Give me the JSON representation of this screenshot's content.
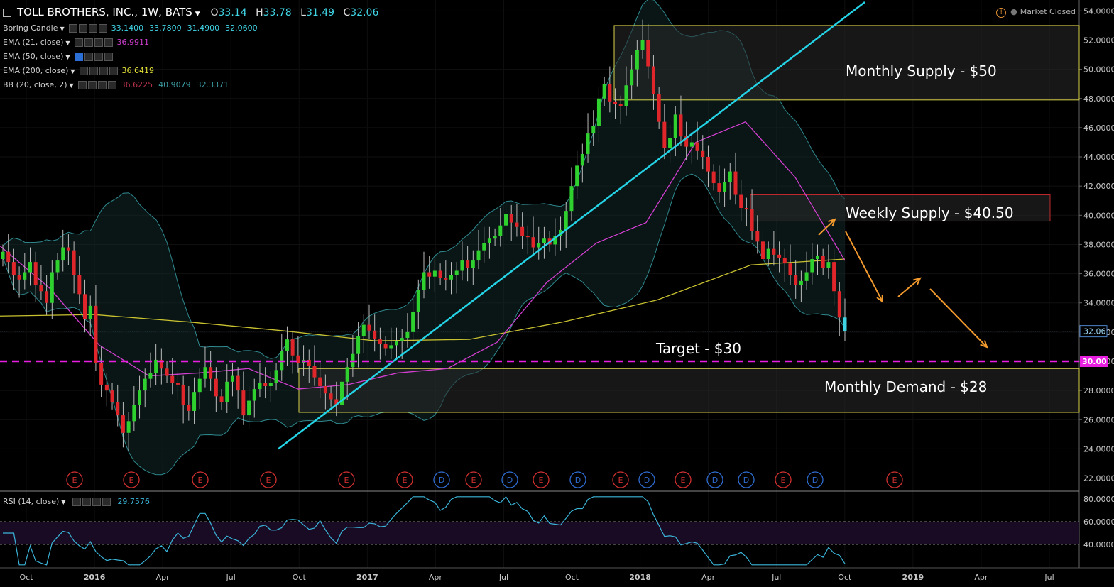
{
  "header": {
    "symbol": "TOLL BROTHERS, INC., 1W, BATS",
    "o_label": "O",
    "o_value": "33.14",
    "h_label": "H",
    "h_value": "33.78",
    "l_label": "L",
    "l_value": "31.49",
    "c_label": "C",
    "c_value": "32.06",
    "market_status": "Market Closed"
  },
  "legends": [
    {
      "name": "Boring Candle",
      "values": [
        {
          "t": "33.1400",
          "c": "#3fd4e4"
        },
        {
          "t": "33.7800",
          "c": "#3fd4e4"
        },
        {
          "t": "31.4900",
          "c": "#3fd4e4"
        },
        {
          "t": "32.0600",
          "c": "#3fd4e4"
        }
      ]
    },
    {
      "name": "EMA (21, close)",
      "values": [
        {
          "t": "36.9911",
          "c": "#d13fd0"
        }
      ]
    },
    {
      "name": "EMA (50, close)",
      "values": []
    },
    {
      "name": "EMA (200, close)",
      "values": [
        {
          "t": "36.6419",
          "c": "#e3e036"
        }
      ]
    },
    {
      "name": "BB (20, close, 2)",
      "values": [
        {
          "t": "36.6225",
          "c": "#b8324a"
        },
        {
          "t": "40.9079",
          "c": "#3a9aa0"
        },
        {
          "t": "32.3371",
          "c": "#3a9aa0"
        }
      ]
    }
  ],
  "rsi_legend": {
    "name": "RSI (14, close)",
    "value": "29.7576"
  },
  "annotations": {
    "monthly_supply": "Monthly Supply - $50",
    "weekly_supply": "Weekly Supply - $40.50",
    "target": "Target - $30",
    "monthly_demand": "Monthly Demand - $28"
  },
  "price_tags": {
    "last": "32.06",
    "target": "30.00"
  },
  "colors": {
    "up": "#2fd12f",
    "down": "#e0262a",
    "last": "#3fd4e4",
    "ema21": "#d13fd0",
    "ema200": "#c9c230",
    "bb": "#2f8a90",
    "trendline": "#25d3e6",
    "target": "#e81fe0",
    "zone": "#d8d34a",
    "weekly_zone": "#c0282c",
    "arrow": "#f29a2e",
    "rsi": "#3ab4d8"
  },
  "chart_data": {
    "type": "candlestick",
    "title": "TOLL BROTHERS, INC., 1W, BATS",
    "y_ticks": [
      "54.0000",
      "52.0000",
      "50.0000",
      "48.0000",
      "46.0000",
      "44.0000",
      "42.0000",
      "40.0000",
      "38.0000",
      "36.0000",
      "34.0000",
      "32.0000",
      "30.0000",
      "28.0000",
      "26.0000",
      "24.0000",
      "22.0000"
    ],
    "ylim": [
      21.2,
      54.6
    ],
    "x_ticks": [
      "Oct",
      "2016",
      "Apr",
      "Jul",
      "Oct",
      "2017",
      "Apr",
      "Jul",
      "Oct",
      "2018",
      "Apr",
      "Jul",
      "Oct",
      "2019",
      "Apr",
      "Jul"
    ],
    "close_series": [
      37.5,
      36.8,
      35.9,
      35.6,
      36.1,
      36.8,
      35.2,
      34.8,
      34.0,
      36.1,
      36.9,
      37.8,
      37.6,
      35.9,
      34.6,
      32.9,
      33.8,
      29.9,
      28.4,
      28.0,
      27.2,
      26.3,
      25.1,
      25.9,
      27.0,
      28.0,
      28.8,
      29.2,
      30.1,
      29.5,
      29.0,
      28.5,
      28.4,
      27.0,
      26.6,
      27.9,
      28.8,
      29.6,
      28.8,
      27.6,
      27.2,
      28.6,
      29.0,
      28.0,
      26.3,
      27.3,
      28.1,
      28.5,
      28.3,
      28.5,
      29.4,
      30.7,
      31.5,
      30.4,
      29.9,
      30.1,
      29.7,
      28.9,
      28.3,
      27.8,
      27.4,
      27.0,
      28.6,
      29.6,
      30.5,
      31.7,
      32.5,
      32.1,
      31.5,
      31.2,
      30.9,
      31.1,
      31.4,
      31.6,
      32.0,
      33.4,
      34.9,
      36.1,
      35.8,
      36.2,
      35.7,
      35.6,
      35.9,
      36.2,
      36.9,
      36.4,
      36.9,
      37.6,
      38.1,
      38.4,
      38.6,
      39.3,
      40.1,
      39.5,
      39.2,
      38.6,
      38.5,
      37.8,
      38.1,
      38.4,
      38.0,
      38.6,
      39.0,
      40.3,
      42.0,
      43.4,
      44.2,
      45.6,
      46.1,
      48.0,
      49.0,
      47.8,
      47.6,
      47.5,
      48.9,
      50.0,
      51.3,
      52.0,
      50.2,
      48.3,
      46.4,
      44.6,
      45.3,
      46.9,
      45.4,
      44.7,
      45.0,
      44.4,
      44.0,
      43.0,
      42.2,
      41.6,
      42.3,
      43.0,
      41.4,
      40.5,
      40.4,
      38.9,
      38.2,
      37.0,
      37.7,
      37.3,
      37.1,
      36.7,
      35.9,
      35.2,
      35.5,
      36.1,
      37.0,
      37.2,
      36.4,
      36.8,
      34.8,
      33.0,
      32.06
    ],
    "ema21": [
      37.9,
      35.0,
      31.1,
      29.0,
      29.2,
      29.5,
      28.1,
      28.4,
      29.2,
      29.5,
      31.3,
      35.4,
      38.1,
      39.5,
      45.0,
      46.4,
      42.6,
      36.9
    ],
    "ema200": [
      33.1,
      33.2,
      32.7,
      32.1,
      31.4,
      31.5,
      32.7,
      34.2,
      36.6,
      37.0
    ],
    "rsi": {
      "value": 29.7576,
      "levels": [
        60,
        40
      ],
      "ylim": [
        0,
        100
      ],
      "y_ticks": [
        "80.0000",
        "60.0000",
        "40.0000"
      ]
    },
    "zones": [
      {
        "label": "Monthly Supply - $50",
        "top": 53.0,
        "bottom": 47.9
      },
      {
        "label": "Weekly Supply - $40.50",
        "top": 41.4,
        "bottom": 39.6
      },
      {
        "label": "Monthly Demand - $28",
        "top": 29.5,
        "bottom": 26.5
      }
    ],
    "target_line": 30.0,
    "trendline": {
      "from": 24.0,
      "to": 54.6
    },
    "earnings_markers": [
      "E",
      "E",
      "E",
      "E",
      "E",
      "E",
      "D",
      "E",
      "D",
      "E",
      "D",
      "E",
      "D",
      "E",
      "D",
      "D",
      "E",
      "D",
      "E",
      "E"
    ]
  }
}
